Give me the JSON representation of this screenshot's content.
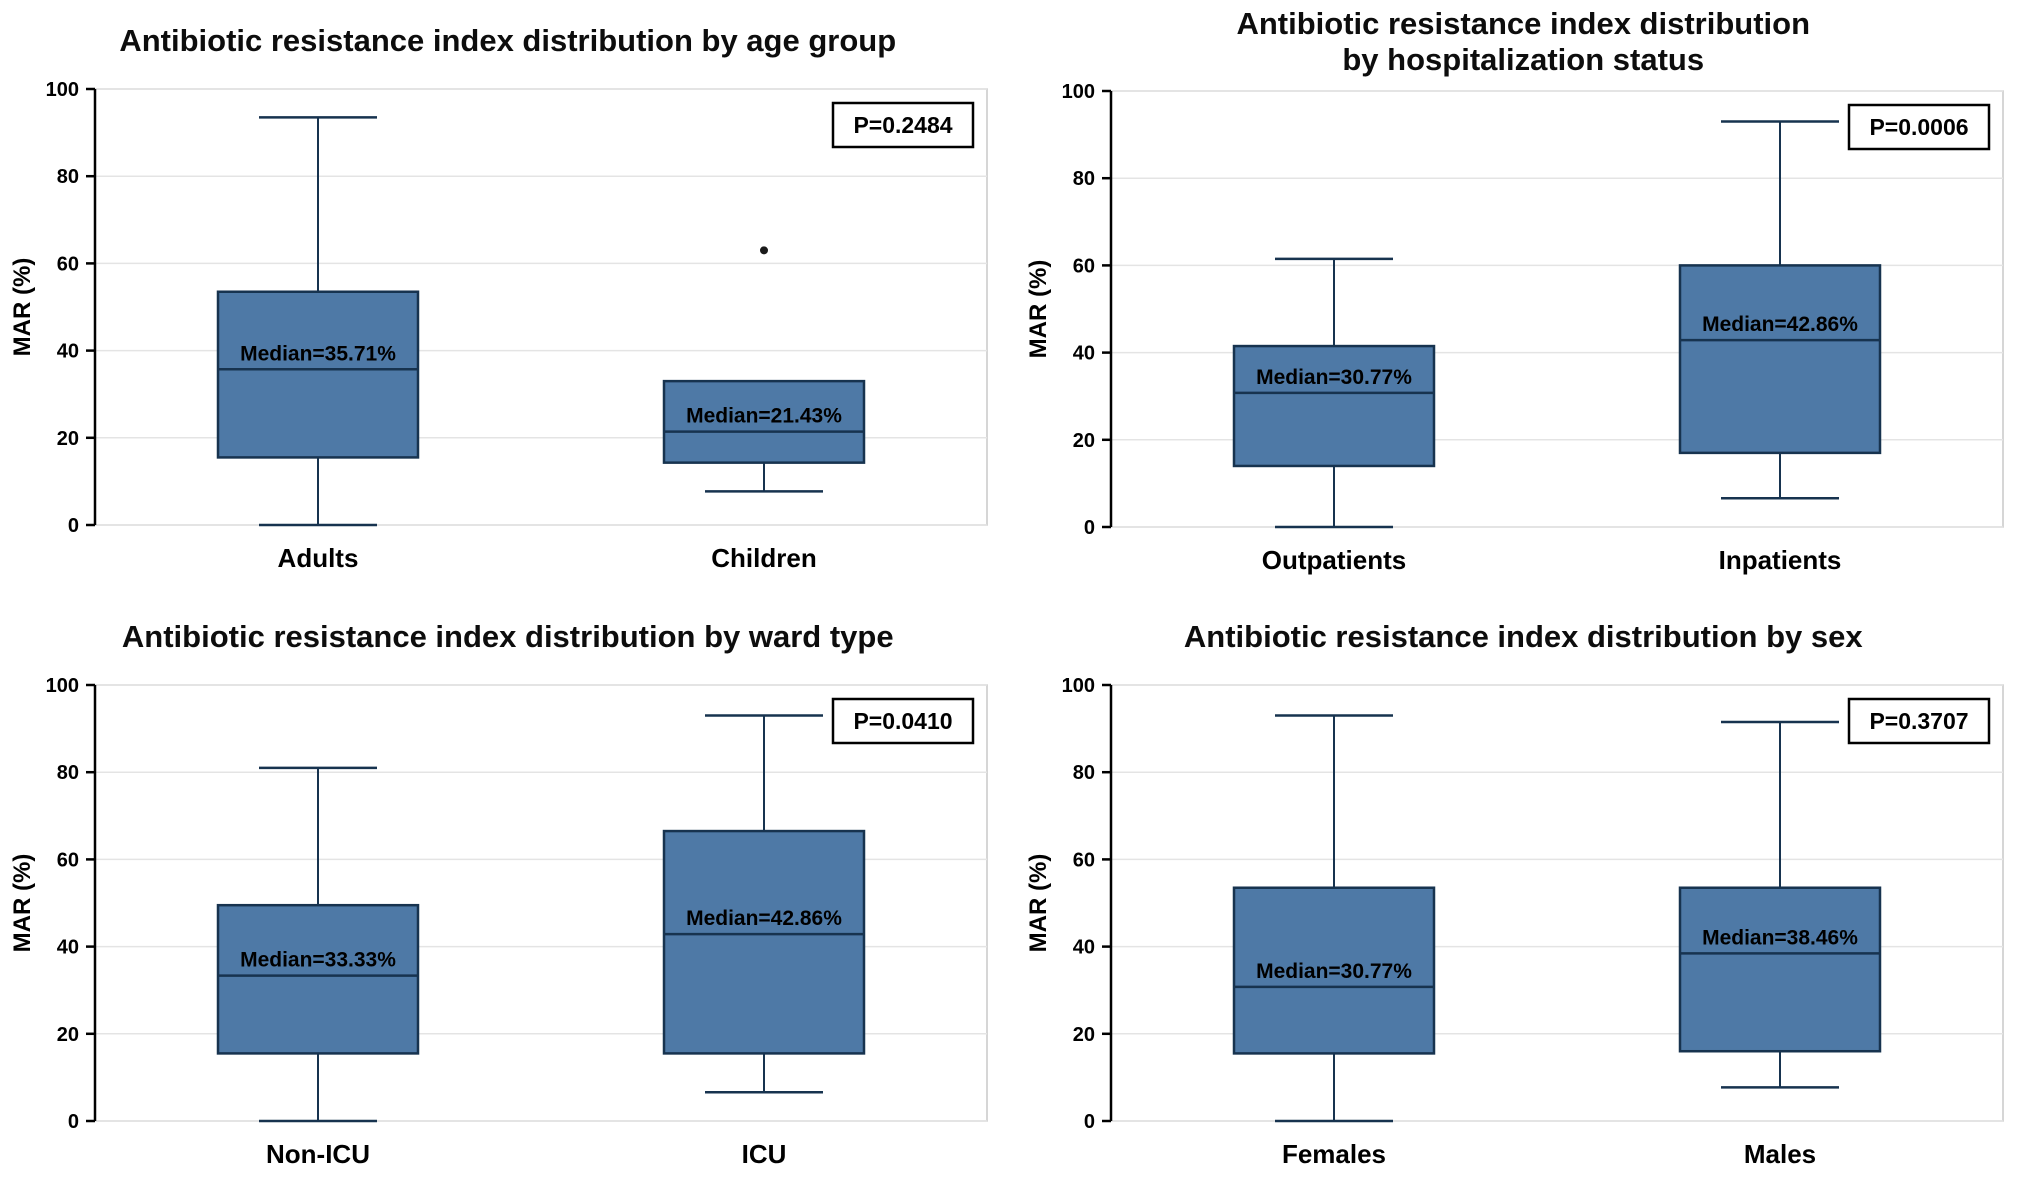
{
  "page": {
    "background": "#ffffff"
  },
  "style": {
    "box_fill": "#4e79a6",
    "box_stroke": "#17334f",
    "grid": "#e4e4e4",
    "frame": "#c9c9c9",
    "axis": "#000000",
    "text": "#000000",
    "outlier": "#1a1a1a"
  },
  "chart_data": [
    {
      "type": "boxplot",
      "title": "Antibiotic resistance index distribution by age group",
      "ylabel": "MAR (%)",
      "ylim": [
        0,
        100
      ],
      "yticks": [
        0,
        20,
        40,
        60,
        80,
        100
      ],
      "grid": true,
      "legend": "none",
      "p_label": "P=0.2484",
      "groups": [
        {
          "label": "Adults",
          "median_label": "Median=35.71%",
          "median": 35.71,
          "q1": 15.5,
          "q3": 53.5,
          "whisker_low": 0,
          "whisker_high": 93.5,
          "outliers": []
        },
        {
          "label": "Children",
          "median_label": "Median=21.43%",
          "median": 21.43,
          "q1": 14.3,
          "q3": 33,
          "whisker_low": 7.7,
          "whisker_high": 33,
          "outliers": [
            63
          ]
        }
      ]
    },
    {
      "type": "boxplot",
      "title": "Antibiotic resistance index distribution\nby hospitalization status",
      "ylabel": "MAR (%)",
      "ylim": [
        0,
        100
      ],
      "yticks": [
        0,
        20,
        40,
        60,
        80,
        100
      ],
      "grid": true,
      "legend": "none",
      "p_label": "P=0.0006",
      "groups": [
        {
          "label": "Outpatients",
          "median_label": "Median=30.77%",
          "median": 30.77,
          "q1": 14,
          "q3": 41.5,
          "whisker_low": 0,
          "whisker_high": 61.5,
          "outliers": []
        },
        {
          "label": "Inpatients",
          "median_label": "Median=42.86%",
          "median": 42.86,
          "q1": 17,
          "q3": 60,
          "whisker_low": 6.6,
          "whisker_high": 93,
          "outliers": []
        }
      ]
    },
    {
      "type": "boxplot",
      "title": "Antibiotic resistance index distribution by ward type",
      "ylabel": "MAR (%)",
      "ylim": [
        0,
        100
      ],
      "yticks": [
        0,
        20,
        40,
        60,
        80,
        100
      ],
      "grid": true,
      "legend": "none",
      "p_label": "P=0.0410",
      "groups": [
        {
          "label": "Non-ICU",
          "median_label": "Median=33.33%",
          "median": 33.33,
          "q1": 15.5,
          "q3": 49.5,
          "whisker_low": 0,
          "whisker_high": 81,
          "outliers": []
        },
        {
          "label": "ICU",
          "median_label": "Median=42.86%",
          "median": 42.86,
          "q1": 15.5,
          "q3": 66.5,
          "whisker_low": 6.6,
          "whisker_high": 93,
          "outliers": []
        }
      ]
    },
    {
      "type": "boxplot",
      "title": "Antibiotic resistance index distribution by sex",
      "ylabel": "MAR (%)",
      "ylim": [
        0,
        100
      ],
      "yticks": [
        0,
        20,
        40,
        60,
        80,
        100
      ],
      "grid": true,
      "legend": "none",
      "p_label": "P=0.3707",
      "groups": [
        {
          "label": "Females",
          "median_label": "Median=30.77%",
          "median": 30.77,
          "q1": 15.5,
          "q3": 53.5,
          "whisker_low": 0,
          "whisker_high": 93,
          "outliers": []
        },
        {
          "label": "Males",
          "median_label": "Median=38.46%",
          "median": 38.46,
          "q1": 16,
          "q3": 53.5,
          "whisker_low": 7.7,
          "whisker_high": 91.5,
          "outliers": []
        }
      ]
    }
  ]
}
